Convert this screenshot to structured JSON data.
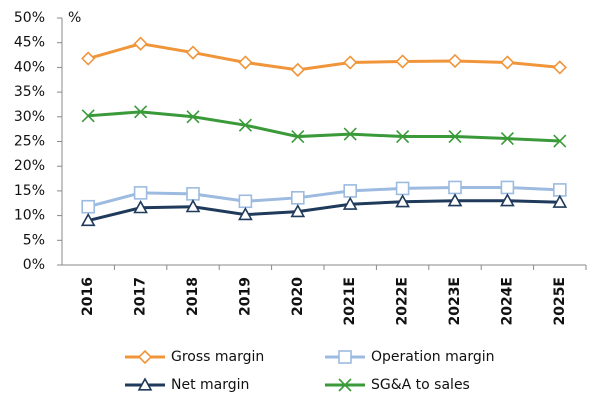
{
  "chart_data": {
    "type": "line",
    "y_unit": "%",
    "categories": [
      "2016",
      "2017",
      "2018",
      "2019",
      "2020",
      "2021E",
      "2022E",
      "2023E",
      "2024E",
      "2025E"
    ],
    "series": [
      {
        "name": "Gross margin",
        "color": "#f0953a",
        "marker": "diamond",
        "values": [
          41.8,
          44.8,
          43.0,
          41.0,
          39.5,
          41.0,
          41.2,
          41.3,
          41.0,
          40.0
        ]
      },
      {
        "name": "Operation margin",
        "color": "#9dbbe0",
        "marker": "square",
        "values": [
          11.8,
          14.6,
          14.4,
          12.9,
          13.6,
          15.0,
          15.5,
          15.7,
          15.7,
          15.2
        ]
      },
      {
        "name": "Net margin",
        "color": "#1f3a5a",
        "marker": "triangle",
        "values": [
          9.0,
          11.6,
          11.8,
          10.2,
          10.8,
          12.3,
          12.8,
          13.0,
          13.0,
          12.7
        ]
      },
      {
        "name": "SG&A to sales",
        "color": "#3a9a3a",
        "marker": "x",
        "values": [
          30.2,
          31.0,
          30.0,
          28.3,
          26.0,
          26.5,
          26.0,
          26.0,
          25.6,
          25.1
        ]
      }
    ],
    "ylim": [
      0,
      50
    ],
    "yticks": [
      {
        "value": 0,
        "label": "0%"
      },
      {
        "value": 5,
        "label": "5%"
      },
      {
        "value": 10,
        "label": "10%"
      },
      {
        "value": 15,
        "label": "15%"
      },
      {
        "value": 20,
        "label": "20%"
      },
      {
        "value": 25,
        "label": "25%"
      },
      {
        "value": 30,
        "label": "30%"
      },
      {
        "value": 35,
        "label": "35%"
      },
      {
        "value": 40,
        "label": "40%"
      },
      {
        "value": 45,
        "label": "45%"
      },
      {
        "value": 50,
        "label": "50%"
      }
    ],
    "grid": false
  }
}
